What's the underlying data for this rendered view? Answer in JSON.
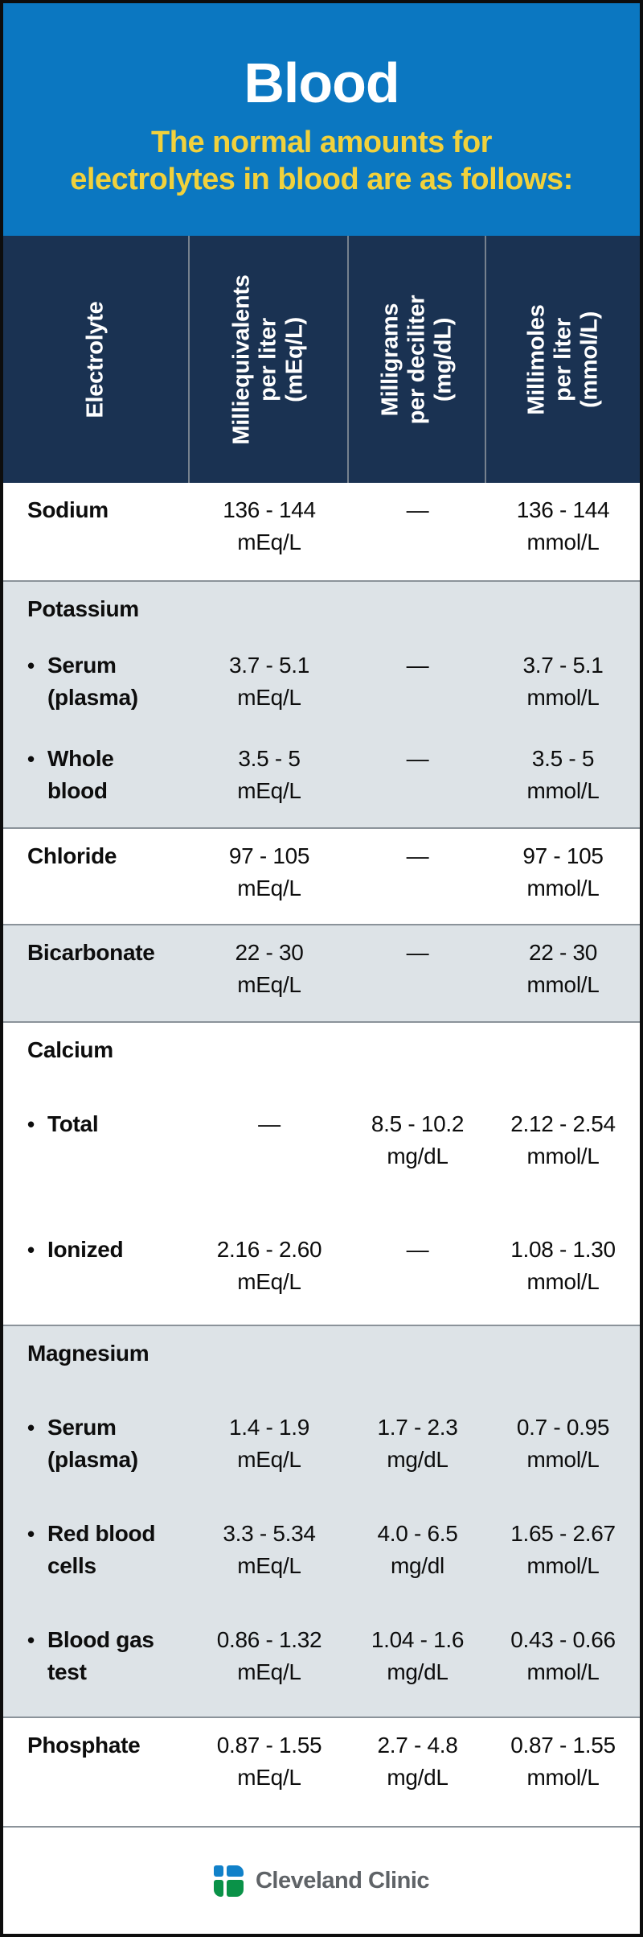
{
  "header": {
    "title": "Blood",
    "subtitle_lines": [
      "The normal amounts for",
      "electrolytes in blood are as follows:"
    ]
  },
  "glyphs": {
    "bullet": "•"
  },
  "colors": {
    "banner_blue": "#0b77c1",
    "subtitle_yellow": "#f1d13c",
    "header_navy": "#1a3252",
    "row_gray": "#dde3e7",
    "divider_gray": "#8b939a",
    "logo_blue": "#1181c9",
    "logo_green": "#0a9248",
    "brand_text_gray": "#5f6367"
  },
  "table": {
    "column_headers": [
      {
        "lines": [
          "Electrolyte"
        ]
      },
      {
        "lines": [
          "Milliequivalents",
          "per liter",
          "(mEq/L)"
        ]
      },
      {
        "lines": [
          "Milligrams",
          "per deciliter",
          "(mg/dL)"
        ]
      },
      {
        "lines": [
          "Millimoles",
          "per liter",
          "(mmol/L)"
        ]
      }
    ],
    "sections": [
      {
        "rows": [
          {
            "name": [
              "Sodium"
            ],
            "cells": [
              {
                "v": "136 - 144",
                "u": "mEq/L"
              },
              {
                "v": "—",
                "u": ""
              },
              {
                "v": "136 - 144",
                "u": "mmol/L"
              }
            ]
          }
        ]
      },
      {
        "label": "Potassium",
        "rows": [
          {
            "name": [
              "Serum",
              "(plasma)"
            ],
            "cells": [
              {
                "v": "3.7 - 5.1",
                "u": "mEq/L"
              },
              {
                "v": "—",
                "u": ""
              },
              {
                "v": "3.7 - 5.1",
                "u": "mmol/L"
              }
            ]
          },
          {
            "name": [
              "Whole",
              "blood"
            ],
            "cells": [
              {
                "v": "3.5 - 5",
                "u": "mEq/L"
              },
              {
                "v": "—",
                "u": ""
              },
              {
                "v": "3.5 - 5",
                "u": "mmol/L"
              }
            ]
          }
        ]
      },
      {
        "rows": [
          {
            "name": [
              "Chloride"
            ],
            "cells": [
              {
                "v": "97 - 105",
                "u": "mEq/L"
              },
              {
                "v": "—",
                "u": ""
              },
              {
                "v": "97 - 105",
                "u": "mmol/L"
              }
            ]
          }
        ]
      },
      {
        "rows": [
          {
            "name": [
              "Bicarbonate"
            ],
            "cells": [
              {
                "v": "22 - 30",
                "u": "mEq/L"
              },
              {
                "v": "—",
                "u": ""
              },
              {
                "v": "22 - 30",
                "u": "mmol/L"
              }
            ]
          }
        ]
      },
      {
        "label": "Calcium",
        "rows": [
          {
            "name": [
              "Total"
            ],
            "cells": [
              {
                "v": "—",
                "u": ""
              },
              {
                "v": "8.5 - 10.2",
                "u": "mg/dL"
              },
              {
                "v": "2.12 - 2.54",
                "u": "mmol/L"
              }
            ]
          },
          {
            "name": [
              "Ionized"
            ],
            "cells": [
              {
                "v": "2.16 - 2.60",
                "u": "mEq/L"
              },
              {
                "v": "—",
                "u": ""
              },
              {
                "v": "1.08 - 1.30",
                "u": "mmol/L"
              }
            ]
          }
        ]
      },
      {
        "label": "Magnesium",
        "rows": [
          {
            "name": [
              "Serum",
              "(plasma)"
            ],
            "cells": [
              {
                "v": "1.4 - 1.9",
                "u": "mEq/L"
              },
              {
                "v": "1.7 - 2.3",
                "u": "mg/dL"
              },
              {
                "v": "0.7 - 0.95",
                "u": "mmol/L"
              }
            ]
          },
          {
            "name": [
              "Red blood",
              "cells"
            ],
            "cells": [
              {
                "v": "3.3 - 5.34",
                "u": "mEq/L"
              },
              {
                "v": "4.0 - 6.5",
                "u": "mg/dl"
              },
              {
                "v": "1.65 - 2.67",
                "u": "mmol/L"
              }
            ]
          },
          {
            "name": [
              "Blood gas",
              "test"
            ],
            "cells": [
              {
                "v": "0.86 - 1.32",
                "u": "mEq/L"
              },
              {
                "v": "1.04 - 1.6",
                "u": "mg/dL"
              },
              {
                "v": "0.43 - 0.66",
                "u": "mmol/L"
              }
            ]
          }
        ]
      },
      {
        "rows": [
          {
            "name": [
              "Phosphate"
            ],
            "cells": [
              {
                "v": "0.87 - 1.55",
                "u": "mEq/L"
              },
              {
                "v": "2.7 - 4.8",
                "u": "mg/dL"
              },
              {
                "v": "0.87 - 1.55",
                "u": "mmol/L"
              }
            ]
          }
        ]
      }
    ]
  },
  "footer": {
    "brand": "Cleveland Clinic"
  }
}
